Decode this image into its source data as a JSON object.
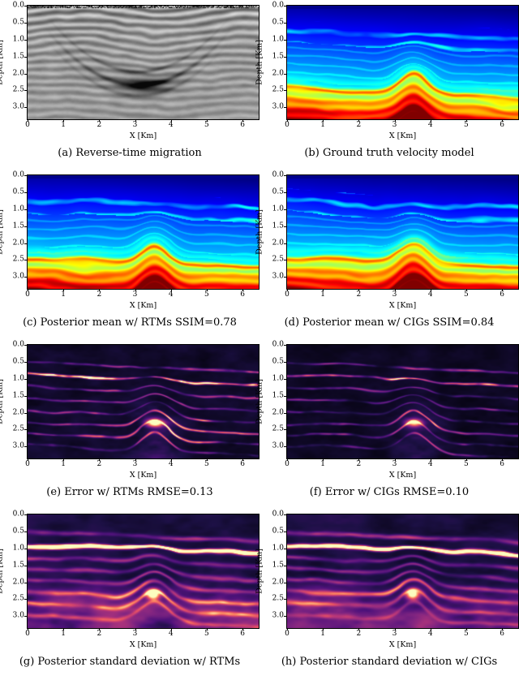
{
  "figure": {
    "axes": {
      "xlabel": "X [Km]",
      "ylabel": "Depth [Km]",
      "x_tick_labels": [
        "0",
        "1",
        "2",
        "3",
        "4",
        "5",
        "6"
      ],
      "x_tick_values": [
        0,
        1,
        2,
        3,
        4,
        5,
        6
      ],
      "x_range": [
        0,
        6.45
      ],
      "y_tick_labels": [
        "0.0",
        "0.5",
        "1.0",
        "1.5",
        "2.0",
        "2.5",
        "3.0"
      ],
      "y_tick_values": [
        0,
        0.5,
        1,
        1.5,
        2,
        2.5,
        3
      ],
      "y_range": [
        0,
        3.35
      ]
    },
    "panels": [
      {
        "id": "a",
        "caption": "(a) Reverse-time migration",
        "type": "rtm",
        "colormap": "grayscale"
      },
      {
        "id": "b",
        "caption": "(b) Ground truth velocity model",
        "type": "velocity",
        "colormap": "jet"
      },
      {
        "id": "c",
        "caption": "(c) Posterior mean w/ RTMs SSIM=0.78",
        "type": "velocity",
        "colormap": "jet",
        "metric": {
          "name": "SSIM",
          "value": 0.78
        }
      },
      {
        "id": "d",
        "caption": "(d) Posterior mean w/ CIGs SSIM=0.84",
        "type": "velocity",
        "colormap": "jet",
        "metric": {
          "name": "SSIM",
          "value": 0.84
        }
      },
      {
        "id": "e",
        "caption": "(e) Error w/ RTMs RMSE=0.13",
        "type": "error",
        "colormap": "magma",
        "metric": {
          "name": "RMSE",
          "value": 0.13
        }
      },
      {
        "id": "f",
        "caption": "(f) Error w/ CIGs RMSE=0.10",
        "type": "error",
        "colormap": "magma",
        "metric": {
          "name": "RMSE",
          "value": 0.1
        }
      },
      {
        "id": "g",
        "caption": "(g) Posterior standard deviation w/ RTMs",
        "type": "std",
        "colormap": "magma"
      },
      {
        "id": "h",
        "caption": "(h) Posterior standard deviation w/ CIGs",
        "type": "std",
        "colormap": "magma"
      }
    ]
  }
}
